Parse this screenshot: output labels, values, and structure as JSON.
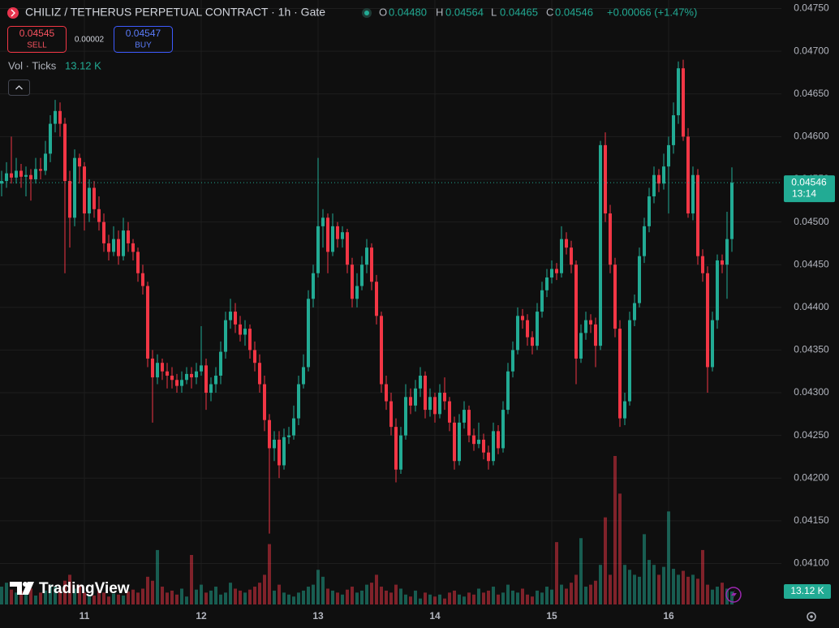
{
  "chart_data": {
    "type": "candlestick",
    "title": "CHILIZ / TETHERUS PERPETUAL CONTRACT · 1h · Gate",
    "legend": [
      {
        "label": "O",
        "value": "0.04480"
      },
      {
        "label": "H",
        "value": "0.04564"
      },
      {
        "label": "L",
        "value": "0.04465"
      },
      {
        "label": "C",
        "value": "0.04546"
      }
    ],
    "change": "+0.00066 (+1.47%)",
    "order_panel": {
      "sell_price": "0.04545",
      "sell": "SELL",
      "spread": "0.00002",
      "buy_price": "0.04547",
      "buy": "BUY"
    },
    "volume_title": "Vol · Ticks",
    "volume_label": "13.12 K",
    "price_badge": {
      "value": 0.04546,
      "label": "0.04546"
    },
    "countdown": "13:14",
    "watermark": "TradingView",
    "up_color": "#22ab94",
    "down_color": "#f23645",
    "grid": true,
    "ylim": [
      0.04052,
      0.0476
    ],
    "yticks": [
      {
        "value": 0.0475,
        "label": "0.04750"
      },
      {
        "value": 0.047,
        "label": "0.04700"
      },
      {
        "value": 0.0465,
        "label": "0.04650"
      },
      {
        "value": 0.046,
        "label": "0.04600"
      },
      {
        "value": 0.0455,
        "label": "0.04550"
      },
      {
        "value": 0.045,
        "label": "0.04500"
      },
      {
        "value": 0.0445,
        "label": "0.04450"
      },
      {
        "value": 0.044,
        "label": "0.04400"
      },
      {
        "value": 0.0435,
        "label": "0.04350"
      },
      {
        "value": 0.043,
        "label": "0.04300"
      },
      {
        "value": 0.0425,
        "label": "0.04250"
      },
      {
        "value": 0.042,
        "label": "0.04200"
      },
      {
        "value": 0.0415,
        "label": "0.04150"
      },
      {
        "value": 0.041,
        "label": "0.04100"
      }
    ],
    "categories": [
      null,
      null,
      null,
      null,
      null,
      null,
      null,
      null,
      null,
      null,
      null,
      null,
      null,
      null,
      null,
      null,
      null,
      "11",
      null,
      null,
      null,
      null,
      null,
      null,
      null,
      null,
      null,
      null,
      null,
      null,
      null,
      null,
      null,
      null,
      null,
      null,
      null,
      null,
      null,
      null,
      null,
      "12",
      null,
      null,
      null,
      null,
      null,
      null,
      null,
      null,
      null,
      null,
      null,
      null,
      null,
      null,
      null,
      null,
      null,
      null,
      null,
      null,
      null,
      null,
      null,
      "13",
      null,
      null,
      null,
      null,
      null,
      null,
      null,
      null,
      null,
      null,
      null,
      null,
      null,
      null,
      null,
      null,
      null,
      null,
      null,
      null,
      null,
      null,
      null,
      "14",
      null,
      null,
      null,
      null,
      null,
      null,
      null,
      null,
      null,
      null,
      null,
      null,
      null,
      null,
      null,
      null,
      null,
      null,
      null,
      null,
      null,
      null,
      null,
      "15",
      null,
      null,
      null,
      null,
      null,
      null,
      null,
      null,
      null,
      null,
      null,
      null,
      null,
      null,
      null,
      null,
      null,
      null,
      null,
      null,
      null,
      null,
      null,
      "16",
      null,
      null,
      null,
      null,
      null,
      null,
      null,
      null,
      null,
      null,
      null,
      null,
      null
    ],
    "candles": [
      [
        0.04545,
        0.0456,
        0.0453,
        0.04548
      ],
      [
        0.04548,
        0.0457,
        0.0454,
        0.04557
      ],
      [
        0.04557,
        0.046,
        0.04545,
        0.04552
      ],
      [
        0.04552,
        0.04575,
        0.04545,
        0.0456
      ],
      [
        0.0456,
        0.04568,
        0.0454,
        0.04553
      ],
      [
        0.04553,
        0.04565,
        0.0453,
        0.04555
      ],
      [
        0.04555,
        0.04562,
        0.04525,
        0.0455
      ],
      [
        0.0455,
        0.04575,
        0.04545,
        0.04562
      ],
      [
        0.04562,
        0.04575,
        0.0455,
        0.0456
      ],
      [
        0.0456,
        0.04595,
        0.04555,
        0.0458
      ],
      [
        0.0458,
        0.04625,
        0.0457,
        0.04615
      ],
      [
        0.04615,
        0.04643,
        0.04605,
        0.0463
      ],
      [
        0.0463,
        0.0464,
        0.046,
        0.04615
      ],
      [
        0.04615,
        0.04622,
        0.0444,
        0.04548
      ],
      [
        0.04548,
        0.0456,
        0.0447,
        0.04505
      ],
      [
        0.04505,
        0.04585,
        0.04495,
        0.04575
      ],
      [
        0.04575,
        0.0458,
        0.04545,
        0.04565
      ],
      [
        0.04565,
        0.0457,
        0.0449,
        0.0451
      ],
      [
        0.0451,
        0.0455,
        0.045,
        0.0454
      ],
      [
        0.0454,
        0.04548,
        0.04505,
        0.04515
      ],
      [
        0.04515,
        0.0453,
        0.0449,
        0.045
      ],
      [
        0.045,
        0.0451,
        0.04465,
        0.04475
      ],
      [
        0.04475,
        0.04485,
        0.04455,
        0.04465
      ],
      [
        0.04465,
        0.04495,
        0.0446,
        0.0448
      ],
      [
        0.0448,
        0.0449,
        0.0445,
        0.0446
      ],
      [
        0.0446,
        0.04505,
        0.04455,
        0.0449
      ],
      [
        0.0449,
        0.045,
        0.04465,
        0.04475
      ],
      [
        0.04475,
        0.0448,
        0.04455,
        0.04465
      ],
      [
        0.04465,
        0.0447,
        0.0443,
        0.0444
      ],
      [
        0.0444,
        0.0445,
        0.04415,
        0.04425
      ],
      [
        0.04425,
        0.0443,
        0.0433,
        0.0434
      ],
      [
        0.0434,
        0.0435,
        0.04265,
        0.04318
      ],
      [
        0.04318,
        0.04345,
        0.0431,
        0.04335
      ],
      [
        0.04335,
        0.0434,
        0.04315,
        0.04325
      ],
      [
        0.04325,
        0.04335,
        0.04305,
        0.0432
      ],
      [
        0.0432,
        0.0433,
        0.04305,
        0.04315
      ],
      [
        0.04315,
        0.04322,
        0.043,
        0.04308
      ],
      [
        0.04308,
        0.04325,
        0.043,
        0.04315
      ],
      [
        0.04315,
        0.0433,
        0.0431,
        0.04322
      ],
      [
        0.04322,
        0.0433,
        0.04305,
        0.04318
      ],
      [
        0.04318,
        0.04335,
        0.0431,
        0.04325
      ],
      [
        0.04325,
        0.04378,
        0.0432,
        0.04332
      ],
      [
        0.04332,
        0.0434,
        0.0428,
        0.043
      ],
      [
        0.043,
        0.04318,
        0.0429,
        0.0431
      ],
      [
        0.0431,
        0.0433,
        0.043,
        0.0432
      ],
      [
        0.0432,
        0.0436,
        0.0431,
        0.04348
      ],
      [
        0.04348,
        0.04395,
        0.0434,
        0.04385
      ],
      [
        0.04385,
        0.0441,
        0.04375,
        0.04395
      ],
      [
        0.04395,
        0.04405,
        0.0437,
        0.0438
      ],
      [
        0.0438,
        0.0439,
        0.0436,
        0.04368
      ],
      [
        0.04368,
        0.04385,
        0.04355,
        0.04375
      ],
      [
        0.04375,
        0.0438,
        0.0434,
        0.0435
      ],
      [
        0.0435,
        0.0436,
        0.04325,
        0.04335
      ],
      [
        0.04335,
        0.04345,
        0.043,
        0.0431
      ],
      [
        0.0431,
        0.0432,
        0.04255,
        0.04268
      ],
      [
        0.04268,
        0.04275,
        0.04135,
        0.04235
      ],
      [
        0.04235,
        0.04255,
        0.0422,
        0.04245
      ],
      [
        0.04245,
        0.04255,
        0.042,
        0.04215
      ],
      [
        0.04215,
        0.04258,
        0.0421,
        0.04248
      ],
      [
        0.04248,
        0.0426,
        0.0424,
        0.0425
      ],
      [
        0.0425,
        0.04285,
        0.04245,
        0.0427
      ],
      [
        0.0427,
        0.0432,
        0.04262,
        0.0431
      ],
      [
        0.0431,
        0.04345,
        0.04305,
        0.0433
      ],
      [
        0.0433,
        0.0442,
        0.04325,
        0.0441
      ],
      [
        0.0441,
        0.0445,
        0.044,
        0.0444
      ],
      [
        0.0444,
        0.04575,
        0.04435,
        0.04495
      ],
      [
        0.04495,
        0.04515,
        0.0447,
        0.04505
      ],
      [
        0.04505,
        0.0451,
        0.0444,
        0.04465
      ],
      [
        0.04465,
        0.0451,
        0.0446,
        0.04495
      ],
      [
        0.04495,
        0.045,
        0.0447,
        0.0448
      ],
      [
        0.0448,
        0.04495,
        0.0447,
        0.04488
      ],
      [
        0.04488,
        0.04492,
        0.0444,
        0.0445
      ],
      [
        0.0445,
        0.04458,
        0.044,
        0.0441
      ],
      [
        0.0441,
        0.0444,
        0.044,
        0.04425
      ],
      [
        0.04425,
        0.0446,
        0.0442,
        0.0445
      ],
      [
        0.0445,
        0.0448,
        0.0444,
        0.0447
      ],
      [
        0.0447,
        0.04475,
        0.0442,
        0.0443
      ],
      [
        0.0443,
        0.04438,
        0.0438,
        0.0439
      ],
      [
        0.0439,
        0.04395,
        0.043,
        0.0431
      ],
      [
        0.0431,
        0.0432,
        0.0428,
        0.0429
      ],
      [
        0.0429,
        0.043,
        0.0425,
        0.0426
      ],
      [
        0.0426,
        0.0427,
        0.04195,
        0.0421
      ],
      [
        0.0421,
        0.0426,
        0.04205,
        0.0425
      ],
      [
        0.0425,
        0.0431,
        0.04245,
        0.04295
      ],
      [
        0.04295,
        0.04305,
        0.04275,
        0.04285
      ],
      [
        0.04285,
        0.04315,
        0.04278,
        0.04305
      ],
      [
        0.04305,
        0.0433,
        0.04295,
        0.0432
      ],
      [
        0.0432,
        0.04325,
        0.0427,
        0.0428
      ],
      [
        0.0428,
        0.04305,
        0.04272,
        0.04295
      ],
      [
        0.04295,
        0.043,
        0.04265,
        0.04275
      ],
      [
        0.04275,
        0.0431,
        0.0427,
        0.043
      ],
      [
        0.043,
        0.04318,
        0.0428,
        0.0429
      ],
      [
        0.0429,
        0.04295,
        0.04255,
        0.04265
      ],
      [
        0.04265,
        0.04272,
        0.0421,
        0.0422
      ],
      [
        0.0422,
        0.04275,
        0.04215,
        0.04265
      ],
      [
        0.04265,
        0.0429,
        0.04258,
        0.0428
      ],
      [
        0.0428,
        0.04285,
        0.04242,
        0.0425
      ],
      [
        0.0425,
        0.04258,
        0.04232,
        0.0424
      ],
      [
        0.0424,
        0.04265,
        0.04235,
        0.04245
      ],
      [
        0.04245,
        0.04252,
        0.04222,
        0.0423
      ],
      [
        0.0423,
        0.04238,
        0.0421,
        0.0422
      ],
      [
        0.0422,
        0.04265,
        0.04215,
        0.04255
      ],
      [
        0.04255,
        0.04262,
        0.04228,
        0.04235
      ],
      [
        0.04235,
        0.0429,
        0.0423,
        0.0428
      ],
      [
        0.0428,
        0.04335,
        0.04275,
        0.04325
      ],
      [
        0.04325,
        0.0436,
        0.04318,
        0.0435
      ],
      [
        0.0435,
        0.044,
        0.04345,
        0.0439
      ],
      [
        0.0439,
        0.04398,
        0.04375,
        0.04385
      ],
      [
        0.04385,
        0.04392,
        0.04355,
        0.04365
      ],
      [
        0.04365,
        0.04372,
        0.04345,
        0.04355
      ],
      [
        0.04355,
        0.04405,
        0.0435,
        0.04395
      ],
      [
        0.04395,
        0.0443,
        0.04388,
        0.0442
      ],
      [
        0.0442,
        0.04445,
        0.04412,
        0.04435
      ],
      [
        0.04435,
        0.04455,
        0.04428,
        0.04445
      ],
      [
        0.04445,
        0.04452,
        0.04432,
        0.0444
      ],
      [
        0.0444,
        0.04495,
        0.04435,
        0.0448
      ],
      [
        0.0448,
        0.04488,
        0.04462,
        0.0447
      ],
      [
        0.0447,
        0.04478,
        0.0444,
        0.0445
      ],
      [
        0.0445,
        0.04455,
        0.0431,
        0.0434
      ],
      [
        0.0434,
        0.0438,
        0.04335,
        0.0437
      ],
      [
        0.0437,
        0.04395,
        0.04362,
        0.04385
      ],
      [
        0.04385,
        0.04392,
        0.0437,
        0.0438
      ],
      [
        0.0438,
        0.04388,
        0.0433,
        0.04355
      ],
      [
        0.04355,
        0.04595,
        0.0435,
        0.0459
      ],
      [
        0.0459,
        0.04605,
        0.045,
        0.0451
      ],
      [
        0.0451,
        0.0452,
        0.0444,
        0.0445
      ],
      [
        0.0445,
        0.04458,
        0.04365,
        0.04375
      ],
      [
        0.04375,
        0.04385,
        0.0426,
        0.0427
      ],
      [
        0.0427,
        0.043,
        0.04262,
        0.0429
      ],
      [
        0.0429,
        0.04395,
        0.04285,
        0.04385
      ],
      [
        0.04385,
        0.04415,
        0.04378,
        0.04405
      ],
      [
        0.04405,
        0.0447,
        0.044,
        0.0446
      ],
      [
        0.0446,
        0.04505,
        0.04452,
        0.04495
      ],
      [
        0.04495,
        0.0454,
        0.04488,
        0.0453
      ],
      [
        0.0453,
        0.04565,
        0.04522,
        0.04555
      ],
      [
        0.04555,
        0.04562,
        0.04535,
        0.04545
      ],
      [
        0.04545,
        0.0458,
        0.04538,
        0.04565
      ],
      [
        0.04565,
        0.046,
        0.0451,
        0.0459
      ],
      [
        0.0459,
        0.0464,
        0.0458,
        0.04625
      ],
      [
        0.04625,
        0.04688,
        0.04615,
        0.0468
      ],
      [
        0.0468,
        0.0469,
        0.04595,
        0.046
      ],
      [
        0.046,
        0.0461,
        0.04505,
        0.0451
      ],
      [
        0.0451,
        0.04565,
        0.04502,
        0.04555
      ],
      [
        0.04555,
        0.04562,
        0.0445,
        0.0446
      ],
      [
        0.0446,
        0.04468,
        0.0443,
        0.0444
      ],
      [
        0.0444,
        0.04448,
        0.043,
        0.0433
      ],
      [
        0.0433,
        0.04395,
        0.04325,
        0.04385
      ],
      [
        0.04385,
        0.04462,
        0.04375,
        0.04455
      ],
      [
        0.04455,
        0.04462,
        0.0444,
        0.0445
      ],
      [
        0.0445,
        0.04512,
        0.0441,
        0.0448
      ],
      [
        0.0448,
        0.04564,
        0.04465,
        0.04546
      ]
    ],
    "volume": [
      18,
      22,
      15,
      12,
      14,
      10,
      16,
      9,
      12,
      14,
      20,
      18,
      15,
      24,
      30,
      16,
      20,
      12,
      10,
      9,
      14,
      12,
      8,
      11,
      10,
      9,
      13,
      15,
      12,
      16,
      28,
      24,
      55,
      18,
      12,
      14,
      10,
      16,
      8,
      50,
      15,
      20,
      12,
      14,
      18,
      10,
      12,
      22,
      16,
      14,
      12,
      15,
      18,
      22,
      30,
      61,
      14,
      20,
      12,
      10,
      8,
      12,
      14,
      18,
      20,
      35,
      28,
      16,
      14,
      12,
      10,
      15,
      18,
      12,
      14,
      20,
      22,
      30,
      18,
      14,
      12,
      20,
      16,
      10,
      8,
      14,
      6,
      12,
      10,
      8,
      10,
      6,
      12,
      14,
      10,
      8,
      12,
      10,
      16,
      12,
      14,
      18,
      10,
      12,
      20,
      14,
      12,
      16,
      10,
      8,
      14,
      12,
      18,
      15,
      63,
      20,
      16,
      22,
      30,
      67,
      18,
      20,
      24,
      40,
      88,
      30,
      150,
      112,
      40,
      35,
      30,
      28,
      71,
      45,
      40,
      30,
      38,
      94,
      36,
      30,
      34,
      28,
      30,
      26,
      55,
      20,
      15,
      18,
      22,
      16,
      13.12
    ]
  }
}
